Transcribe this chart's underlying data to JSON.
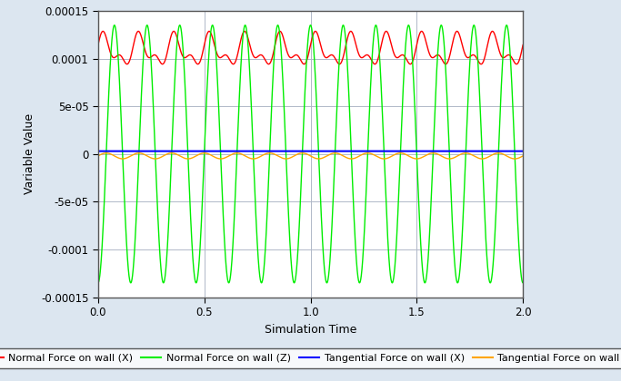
{
  "title": "",
  "xlabel": "Simulation Time",
  "ylabel": "Variable Value",
  "xlim": [
    0,
    2
  ],
  "ylim": [
    -0.00015,
    0.00015
  ],
  "yticks": [
    -0.00015,
    -0.0001,
    -5e-05,
    0,
    5e-05,
    0.0001,
    0.00015
  ],
  "xticks": [
    0,
    0.5,
    1,
    1.5,
    2
  ],
  "background_color": "#dce6f0",
  "plot_bg_color": "#ffffff",
  "grid_color": "#b0b8c8",
  "legend": [
    {
      "label": "Normal Force on wall (X)",
      "color": "#ff0000"
    },
    {
      "label": "Normal Force on wall (Z)",
      "color": "#00ee00"
    },
    {
      "label": "Tangential Force on wall (X)",
      "color": "#0000ff"
    },
    {
      "label": "Tangential Force on wall (Z)",
      "color": "#ffa500"
    }
  ],
  "red_base": 0.000108,
  "red_amplitude_slow": 1.3e-05,
  "red_amplitude_fast": 8e-06,
  "red_freq_slow": 6.0,
  "red_freq_fast": 12.0,
  "red_phase_slow": 0.5,
  "red_phase_fast": 0.0,
  "green_amplitude": 0.000135,
  "green_freq": 6.5,
  "green_phase": -1.5708,
  "blue_value": 3e-06,
  "orange_base": -2e-06,
  "orange_amplitude": 3e-06,
  "orange_freq": 6.5,
  "orange_phase": 0.0,
  "n_points": 8000
}
